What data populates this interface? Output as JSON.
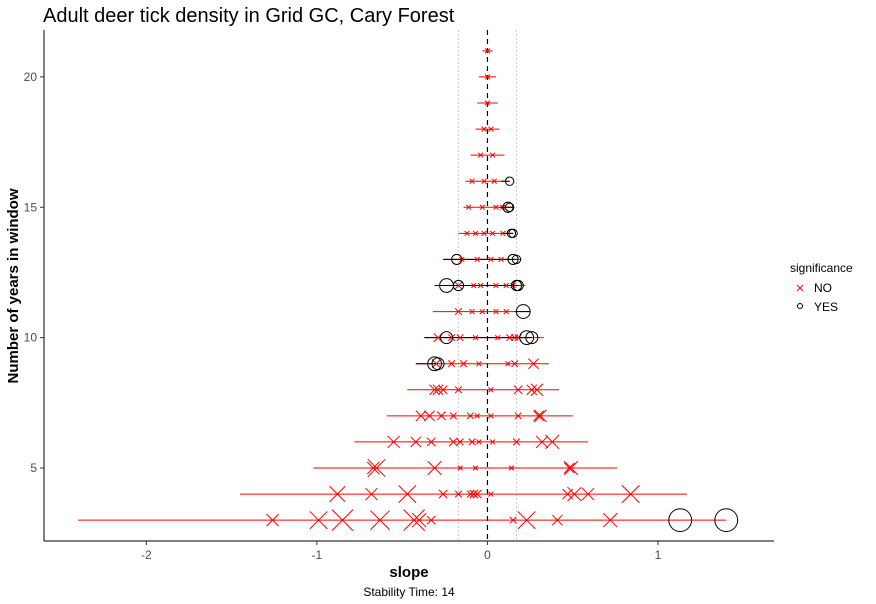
{
  "chart_data": {
    "type": "scatter",
    "title": "Adult deer tick density in Grid GC, Cary Forest",
    "xlabel": "slope",
    "ylabel": "Number of years in window",
    "caption": "Stability Time: 14",
    "xlim": [
      -2.6,
      1.68
    ],
    "ylim": [
      2.2,
      21.8
    ],
    "x_ticks": [
      -2,
      -1,
      0,
      1
    ],
    "y_ticks": [
      5,
      10,
      15,
      20
    ],
    "reference_lines": {
      "zero": 0,
      "bounds": [
        -0.17,
        0.17
      ]
    },
    "legend": {
      "title": "significance",
      "position": "right",
      "entries": [
        {
          "label": "NO",
          "marker": "x",
          "color": "#ff0000"
        },
        {
          "label": "YES",
          "marker": "circle",
          "color": "#000000"
        }
      ]
    },
    "colors": {
      "no": "#ff0000",
      "yes": "#000000",
      "zero_line": "#000000",
      "bound_line": "#cccccc"
    },
    "ranges": [
      {
        "y": 3,
        "min": -2.4,
        "max": 1.4
      },
      {
        "y": 4,
        "min": -1.45,
        "max": 1.17
      },
      {
        "y": 5,
        "min": -1.02,
        "max": 0.76
      },
      {
        "y": 6,
        "min": -0.78,
        "max": 0.59
      },
      {
        "y": 7,
        "min": -0.59,
        "max": 0.5
      },
      {
        "y": 8,
        "min": -0.47,
        "max": 0.42
      },
      {
        "y": 9,
        "min": -0.42,
        "max": 0.36
      },
      {
        "y": 10,
        "min": -0.37,
        "max": 0.33
      },
      {
        "y": 11,
        "min": -0.32,
        "max": 0.25
      },
      {
        "y": 12,
        "min": -0.31,
        "max": 0.22
      },
      {
        "y": 13,
        "min": -0.26,
        "max": 0.2
      },
      {
        "y": 14,
        "min": -0.17,
        "max": 0.15
      },
      {
        "y": 15,
        "min": -0.14,
        "max": 0.15
      },
      {
        "y": 16,
        "min": -0.13,
        "max": 0.13
      },
      {
        "y": 17,
        "min": -0.1,
        "max": 0.1
      },
      {
        "y": 18,
        "min": -0.07,
        "max": 0.07
      },
      {
        "y": 19,
        "min": -0.06,
        "max": 0.06
      },
      {
        "y": 20,
        "min": -0.05,
        "max": 0.05
      },
      {
        "y": 21,
        "min": -0.03,
        "max": 0.03
      }
    ],
    "series": [
      {
        "name": "NO",
        "marker": "x",
        "points": [
          [
            -1.26,
            3,
            5
          ],
          [
            -0.99,
            3,
            8
          ],
          [
            -0.85,
            3,
            10
          ],
          [
            -0.63,
            3,
            9
          ],
          [
            -0.43,
            3,
            10
          ],
          [
            -0.4,
            3,
            6
          ],
          [
            -0.33,
            3,
            3
          ],
          [
            0.15,
            3,
            2
          ],
          [
            0.23,
            3,
            8
          ],
          [
            0.41,
            3,
            4
          ],
          [
            0.72,
            3,
            6
          ],
          [
            -0.88,
            4,
            7
          ],
          [
            -0.68,
            4,
            5
          ],
          [
            -0.47,
            4,
            8
          ],
          [
            -0.26,
            4,
            3
          ],
          [
            -0.17,
            4,
            2
          ],
          [
            -0.1,
            4,
            2
          ],
          [
            -0.06,
            4,
            3
          ],
          [
            -0.08,
            4,
            3
          ],
          [
            0.02,
            4,
            1
          ],
          [
            0.47,
            4,
            4
          ],
          [
            0.51,
            4,
            6
          ],
          [
            0.59,
            4,
            5
          ],
          [
            0.84,
            4,
            8
          ],
          [
            -0.67,
            5,
            5
          ],
          [
            -0.65,
            5,
            8
          ],
          [
            -0.31,
            5,
            6
          ],
          [
            -0.16,
            5,
            1
          ],
          [
            -0.07,
            5,
            1
          ],
          [
            0.14,
            5,
            1
          ],
          [
            0.49,
            5,
            6
          ],
          [
            0.48,
            5,
            4
          ],
          [
            -0.55,
            6,
            5
          ],
          [
            -0.42,
            6,
            4
          ],
          [
            -0.33,
            6,
            3
          ],
          [
            -0.2,
            6,
            3
          ],
          [
            -0.16,
            6,
            2
          ],
          [
            -0.09,
            6,
            2
          ],
          [
            -0.05,
            6,
            1
          ],
          [
            0.03,
            6,
            1
          ],
          [
            0.17,
            6,
            2
          ],
          [
            0.32,
            6,
            5
          ],
          [
            0.38,
            6,
            6
          ],
          [
            -0.39,
            7,
            4
          ],
          [
            -0.34,
            7,
            4
          ],
          [
            -0.27,
            7,
            3
          ],
          [
            -0.2,
            7,
            2
          ],
          [
            -0.1,
            7,
            2
          ],
          [
            -0.06,
            7,
            1
          ],
          [
            0.02,
            7,
            1
          ],
          [
            0.18,
            7,
            2
          ],
          [
            0.3,
            7,
            4
          ],
          [
            0.31,
            7,
            5
          ],
          [
            -0.31,
            8,
            4
          ],
          [
            -0.29,
            8,
            4
          ],
          [
            -0.26,
            8,
            3
          ],
          [
            -0.17,
            8,
            2
          ],
          [
            0.02,
            8,
            1
          ],
          [
            0.18,
            8,
            3
          ],
          [
            0.26,
            8,
            4
          ],
          [
            0.29,
            8,
            5
          ],
          [
            -0.3,
            9,
            3
          ],
          [
            -0.21,
            9,
            2
          ],
          [
            -0.14,
            9,
            2
          ],
          [
            -0.05,
            9,
            1
          ],
          [
            0.12,
            9,
            1
          ],
          [
            0.16,
            9,
            2
          ],
          [
            0.27,
            9,
            4
          ],
          [
            -0.29,
            10,
            3
          ],
          [
            -0.21,
            10,
            2
          ],
          [
            -0.16,
            10,
            2
          ],
          [
            -0.07,
            10,
            1
          ],
          [
            0.06,
            10,
            1
          ],
          [
            0.13,
            10,
            2
          ],
          [
            0.16,
            10,
            2
          ],
          [
            0.18,
            10,
            2
          ],
          [
            -0.17,
            11,
            2
          ],
          [
            -0.09,
            11,
            1
          ],
          [
            -0.03,
            11,
            1
          ],
          [
            0.05,
            11,
            1
          ],
          [
            0.11,
            11,
            1
          ],
          [
            -0.17,
            12,
            2
          ],
          [
            -0.08,
            12,
            1
          ],
          [
            -0.04,
            12,
            1
          ],
          [
            0.05,
            12,
            1
          ],
          [
            0.11,
            12,
            1
          ],
          [
            0.15,
            12,
            1
          ],
          [
            -0.15,
            13,
            1
          ],
          [
            -0.06,
            13,
            1
          ],
          [
            0.02,
            13,
            1
          ],
          [
            0.08,
            13,
            1
          ],
          [
            -0.12,
            14,
            1
          ],
          [
            -0.07,
            14,
            1
          ],
          [
            -0.02,
            14,
            1
          ],
          [
            0.03,
            14,
            1
          ],
          [
            0.09,
            14,
            1
          ],
          [
            -0.11,
            15,
            1
          ],
          [
            -0.03,
            15,
            1
          ],
          [
            0.05,
            15,
            1
          ],
          [
            0.09,
            15,
            1
          ],
          [
            -0.09,
            16,
            1
          ],
          [
            -0.02,
            16,
            1
          ],
          [
            0.04,
            16,
            1
          ],
          [
            -0.04,
            17,
            1
          ],
          [
            0.03,
            17,
            1
          ],
          [
            -0.02,
            18,
            1
          ],
          [
            0.02,
            18,
            1
          ],
          [
            0.0,
            19,
            1
          ],
          [
            0.0,
            20,
            1
          ],
          [
            0.0,
            21,
            1
          ]
        ]
      },
      {
        "name": "YES",
        "marker": "circle",
        "points": [
          [
            1.13,
            3,
            11
          ],
          [
            1.4,
            3,
            11
          ],
          [
            -0.31,
            9,
            6
          ],
          [
            -0.29,
            9,
            5
          ],
          [
            -0.24,
            10,
            5
          ],
          [
            0.23,
            10,
            6
          ],
          [
            0.26,
            10,
            5
          ],
          [
            0.21,
            11,
            6
          ],
          [
            -0.24,
            12,
            6
          ],
          [
            -0.17,
            12,
            4
          ],
          [
            0.17,
            12,
            4
          ],
          [
            0.18,
            12,
            4
          ],
          [
            -0.18,
            13,
            4
          ],
          [
            0.15,
            13,
            4
          ],
          [
            0.17,
            13,
            3
          ],
          [
            0.14,
            14,
            3
          ],
          [
            0.15,
            14,
            3
          ],
          [
            0.12,
            15,
            4
          ],
          [
            0.13,
            15,
            3
          ],
          [
            0.13,
            16,
            3
          ]
        ]
      }
    ]
  }
}
